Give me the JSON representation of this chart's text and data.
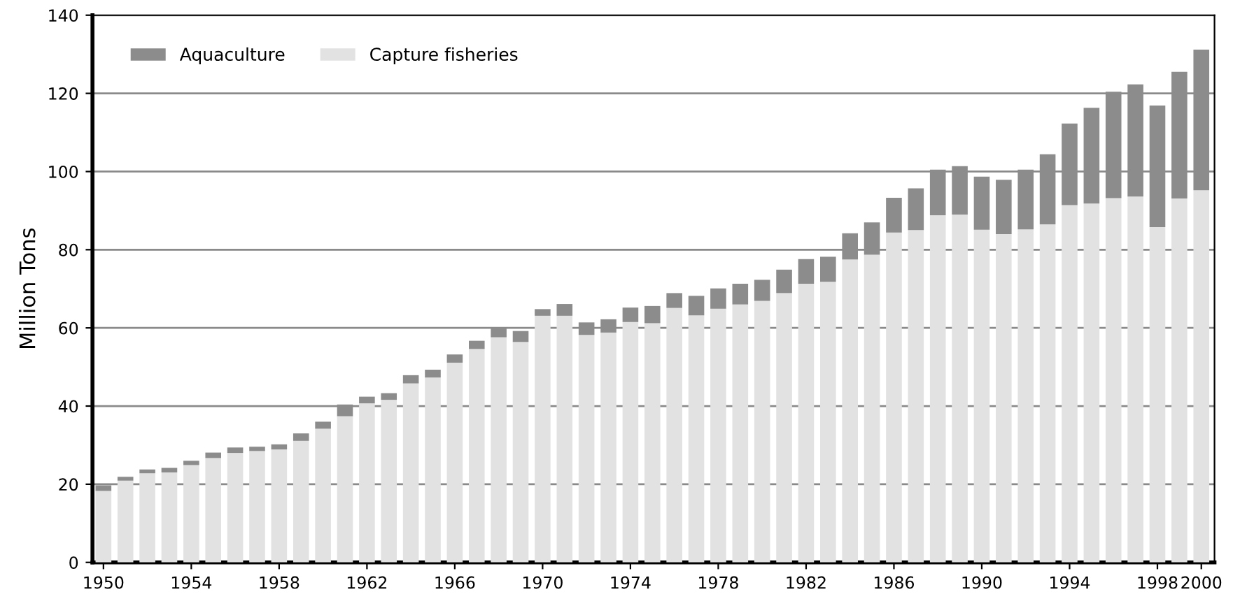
{
  "chart_data": {
    "type": "bar",
    "stacked": true,
    "ylabel": "Million Tons",
    "x": [
      1950,
      1951,
      1952,
      1953,
      1954,
      1955,
      1956,
      1957,
      1958,
      1959,
      1960,
      1961,
      1962,
      1963,
      1964,
      1965,
      1966,
      1967,
      1968,
      1969,
      1970,
      1971,
      1972,
      1973,
      1974,
      1975,
      1976,
      1977,
      1978,
      1979,
      1980,
      1981,
      1982,
      1983,
      1984,
      1985,
      1986,
      1987,
      1988,
      1989,
      1990,
      1991,
      1992,
      1993,
      1994,
      1995,
      1996,
      1997,
      1998,
      1999,
      2000
    ],
    "series": [
      {
        "name": "Capture fisheries",
        "color": "#e2e2e2",
        "values": [
          18.3,
          20.9,
          22.8,
          23.0,
          24.9,
          26.7,
          28.0,
          28.5,
          28.9,
          31.1,
          34.2,
          37.4,
          40.7,
          41.6,
          45.8,
          47.3,
          51.1,
          54.6,
          57.6,
          56.4,
          63.1,
          63.1,
          58.2,
          58.8,
          61.5,
          61.2,
          65.1,
          63.2,
          64.9,
          66.0,
          66.9,
          68.9,
          71.3,
          71.8,
          77.5,
          78.7,
          84.4,
          85.0,
          88.8,
          89.0,
          85.1,
          84.0,
          85.2,
          86.5,
          91.4,
          91.8,
          93.2,
          93.6,
          85.8,
          93.1,
          95.2
        ]
      },
      {
        "name": "Aquaculture",
        "color": "#8c8c8c",
        "values": [
          1.4,
          1.0,
          1.0,
          1.2,
          1.1,
          1.4,
          1.4,
          1.1,
          1.3,
          1.9,
          1.8,
          3.0,
          1.7,
          1.7,
          2.1,
          2.0,
          2.1,
          2.1,
          2.4,
          2.8,
          1.7,
          3.0,
          3.2,
          3.4,
          3.7,
          4.4,
          3.8,
          5.0,
          5.2,
          5.3,
          5.4,
          6.0,
          6.3,
          6.4,
          6.7,
          8.3,
          8.9,
          10.7,
          11.7,
          12.4,
          13.6,
          13.9,
          15.3,
          17.9,
          20.9,
          24.5,
          27.2,
          28.7,
          31.1,
          32.4,
          36.0
        ]
      }
    ],
    "xlim": [
      1949.5,
      2000.6
    ],
    "xticks": [
      1950,
      1954,
      1958,
      1962,
      1966,
      1970,
      1974,
      1978,
      1982,
      1986,
      1990,
      1994,
      1998,
      2000
    ],
    "ylim": [
      0,
      140
    ],
    "yticks": [
      0,
      20,
      40,
      60,
      80,
      100,
      120,
      140
    ],
    "grid": "y",
    "legend": "top left"
  }
}
